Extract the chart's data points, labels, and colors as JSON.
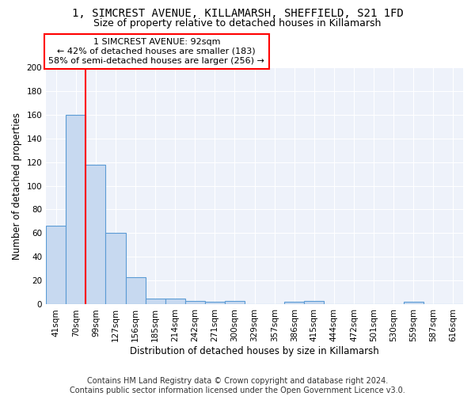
{
  "title": "1, SIMCREST AVENUE, KILLAMARSH, SHEFFIELD, S21 1FD",
  "subtitle": "Size of property relative to detached houses in Killamarsh",
  "xlabel": "Distribution of detached houses by size in Killamarsh",
  "ylabel": "Number of detached properties",
  "bin_labels": [
    "41sqm",
    "70sqm",
    "99sqm",
    "127sqm",
    "156sqm",
    "185sqm",
    "214sqm",
    "242sqm",
    "271sqm",
    "300sqm",
    "329sqm",
    "357sqm",
    "386sqm",
    "415sqm",
    "444sqm",
    "472sqm",
    "501sqm",
    "530sqm",
    "559sqm",
    "587sqm",
    "616sqm"
  ],
  "bar_values": [
    66,
    160,
    118,
    60,
    23,
    5,
    5,
    3,
    2,
    3,
    0,
    0,
    2,
    3,
    0,
    0,
    0,
    0,
    2,
    0,
    0
  ],
  "bar_color": "#c7d9f0",
  "bar_edge_color": "#5b9bd5",
  "red_line_bin_index": 1,
  "annotation_text": "1 SIMCREST AVENUE: 92sqm\n← 42% of detached houses are smaller (183)\n58% of semi-detached houses are larger (256) →",
  "annotation_box_color": "white",
  "annotation_box_edge_color": "red",
  "ylim": [
    0,
    200
  ],
  "yticks": [
    0,
    20,
    40,
    60,
    80,
    100,
    120,
    140,
    160,
    180,
    200
  ],
  "footer": "Contains HM Land Registry data © Crown copyright and database right 2024.\nContains public sector information licensed under the Open Government Licence v3.0.",
  "background_color": "#eef2fa",
  "grid_color": "#ffffff",
  "title_fontsize": 10,
  "subtitle_fontsize": 9,
  "xlabel_fontsize": 8.5,
  "ylabel_fontsize": 8.5,
  "annotation_fontsize": 8,
  "footer_fontsize": 7,
  "tick_fontsize": 7.5
}
